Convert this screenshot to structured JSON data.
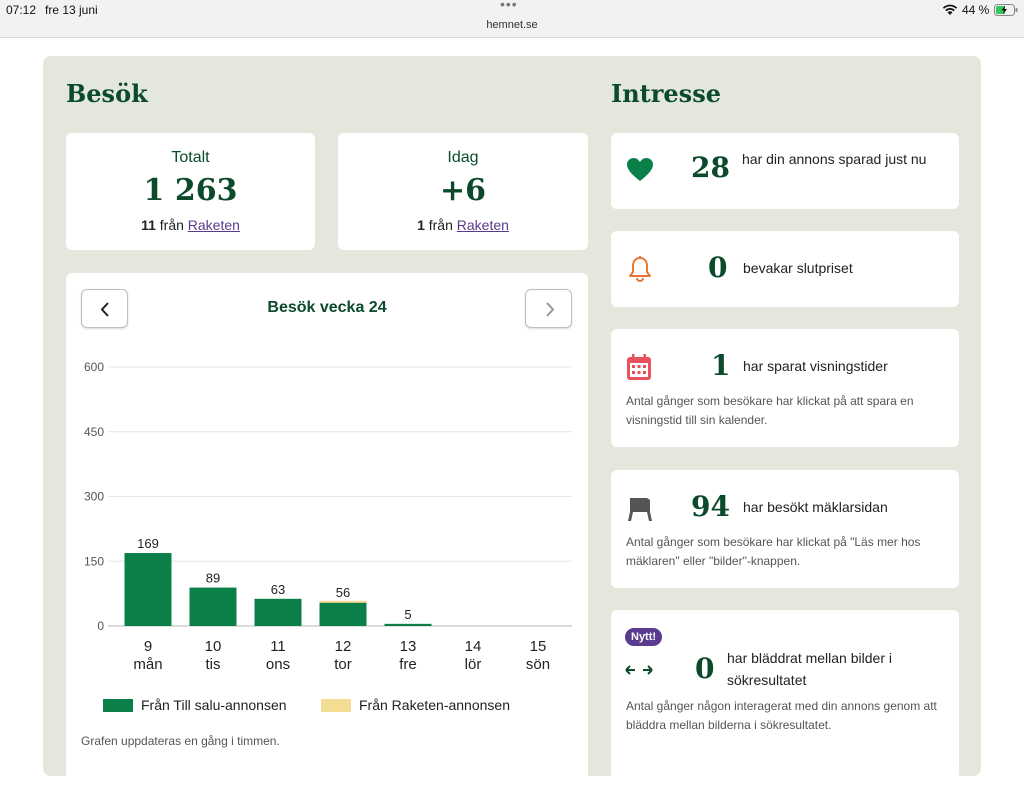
{
  "statusbar": {
    "time": "07:12",
    "date": "fre 13 juni",
    "dots": "•••",
    "url": "hemnet.se",
    "battery": "44 %"
  },
  "besok": {
    "title": "Besök",
    "totalt": {
      "label": "Totalt",
      "value": "1 263",
      "sub_count": "11",
      "sub_from": "från",
      "sub_link": "Raketen"
    },
    "idag": {
      "label": "Idag",
      "value": "+6",
      "sub_count": "1",
      "sub_from": "från",
      "sub_link": "Raketen"
    }
  },
  "chart_card": {
    "title": "Besök vecka 24",
    "note": "Grafen uppdateras en gång i timmen.",
    "prev_icon": "chevron-left-icon",
    "next_icon": "chevron-right-icon"
  },
  "chart_data": {
    "type": "bar",
    "stacked": true,
    "categories": [
      "9",
      "10",
      "11",
      "12",
      "13",
      "14",
      "15"
    ],
    "day_labels": [
      "mån",
      "tis",
      "ons",
      "tor",
      "fre",
      "lör",
      "sön"
    ],
    "series": [
      {
        "name": "Från Till salu-annonsen",
        "color": "#0a8048",
        "values": [
          169,
          89,
          63,
          54,
          5,
          0,
          0
        ]
      },
      {
        "name": "Från Raketen-annonsen",
        "color": "#f3dc94",
        "values": [
          0,
          0,
          0,
          2,
          0,
          0,
          0
        ]
      }
    ],
    "totals": [
      "169",
      "89",
      "63",
      "56",
      "5",
      "",
      ""
    ],
    "yticks": [
      "0",
      "150",
      "300",
      "450",
      "600"
    ],
    "ylim": [
      0,
      600
    ],
    "grid": true,
    "legend_position": "bottom"
  },
  "intresse": {
    "title": "Intresse",
    "cards": [
      {
        "icon": "heart-icon",
        "number": "28",
        "text": "har din annons sparad just nu",
        "desc": ""
      },
      {
        "icon": "bell-icon",
        "number": "0",
        "text": "bevakar slutpriset",
        "desc": ""
      },
      {
        "icon": "calendar-icon",
        "number": "1",
        "text": "har sparat visningstider",
        "desc": "Antal gånger som besökare har klickat på att spara en visningstid till sin kalender."
      },
      {
        "icon": "sign-icon",
        "number": "94",
        "text": "har besökt mäklarsidan",
        "desc": "Antal gånger som besökare har klickat på \"Läs mer hos mäklaren\" eller \"bilder\"-knappen."
      },
      {
        "icon": "arrows-horizontal-icon",
        "number": "0",
        "text": "har bläddrat mellan bilder i sökresultatet",
        "desc": "Antal gånger någon interagerat med din annons genom att bläddra mellan bilderna i sökresultatet.",
        "badge": "Nytt!"
      }
    ]
  }
}
